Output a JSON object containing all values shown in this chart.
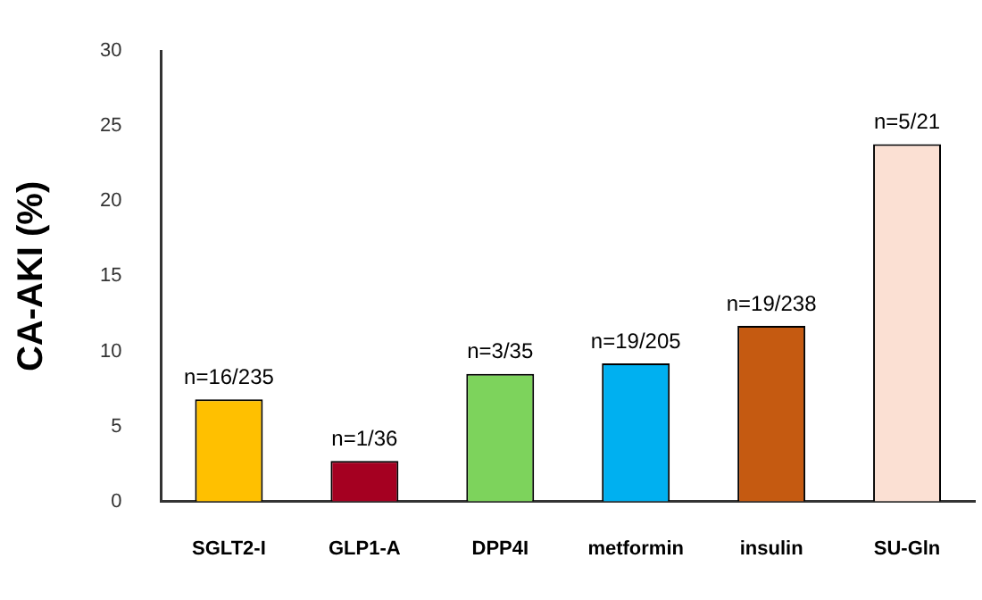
{
  "chart_data": {
    "type": "bar",
    "ylabel": "CA-AKI (%)",
    "categories": [
      "SGLT2-I",
      "GLP1-A",
      "DPP4I",
      "metformin",
      "insulin",
      "SU-Gln"
    ],
    "values": [
      6.8,
      2.7,
      8.5,
      9.2,
      11.7,
      23.8
    ],
    "colors": [
      "#ffc000",
      "#a50021",
      "#7dd35c",
      "#00b0f0",
      "#c55a11",
      "#fbe0d3"
    ],
    "value_labels": [
      "n=16/235",
      "n=1/36",
      "n=3/35",
      "n=19/205",
      "n=19/238",
      "n=5/21"
    ],
    "ylim": [
      0,
      30
    ],
    "yticks": [
      0,
      5,
      10,
      15,
      20,
      25,
      30
    ],
    "grid": false,
    "legend": false
  }
}
